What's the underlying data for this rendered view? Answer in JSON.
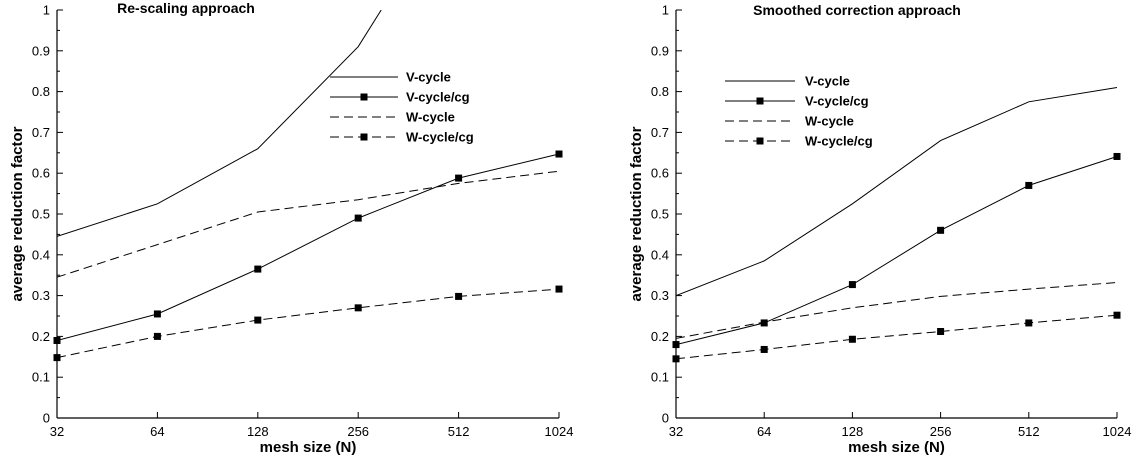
{
  "chart_data": [
    {
      "type": "line",
      "title": "Re-scaling approach",
      "xlabel": "mesh size (N)",
      "ylabel": "average reduction factor",
      "x_scale": "log2",
      "x": [
        32,
        64,
        128,
        256,
        512,
        1024
      ],
      "x_tick_labels": [
        "32",
        "64",
        "128",
        "256",
        "512",
        "1024"
      ],
      "ylim": [
        0,
        1
      ],
      "y_ticks": [
        0,
        0.1,
        0.2,
        0.3,
        0.4,
        0.5,
        0.6,
        0.7,
        0.8,
        0.9,
        1
      ],
      "y_tick_labels": [
        "0",
        "0.1",
        "0.2",
        "0.3",
        "0.4",
        "0.5",
        "0.6",
        "0.7",
        "0.8",
        "0.9",
        "1"
      ],
      "legend_position": "top-right",
      "series": [
        {
          "name": "V-cycle",
          "style": "solid",
          "marker": "none",
          "x": [
            32,
            64,
            128,
            256,
            300
          ],
          "values": [
            0.445,
            0.525,
            0.66,
            0.91,
            1.0
          ]
        },
        {
          "name": "V-cycle/cg",
          "style": "solid",
          "marker": "square",
          "x": [
            32,
            64,
            128,
            256,
            512,
            1024
          ],
          "values": [
            0.19,
            0.255,
            0.365,
            0.49,
            0.588,
            0.647
          ]
        },
        {
          "name": "W-cycle",
          "style": "dashed",
          "marker": "none",
          "x": [
            32,
            64,
            128,
            256,
            512,
            1024
          ],
          "values": [
            0.345,
            0.425,
            0.505,
            0.535,
            0.575,
            0.605
          ]
        },
        {
          "name": "W-cycle/cg",
          "style": "dashed",
          "marker": "square",
          "x": [
            32,
            64,
            128,
            256,
            512,
            1024
          ],
          "values": [
            0.148,
            0.2,
            0.24,
            0.27,
            0.298,
            0.316
          ]
        }
      ]
    },
    {
      "type": "line",
      "title": "Smoothed correction approach",
      "xlabel": "mesh size (N)",
      "ylabel": "average reduction factor",
      "x_scale": "log2",
      "x": [
        32,
        64,
        128,
        256,
        512,
        1024
      ],
      "x_tick_labels": [
        "32",
        "64",
        "128",
        "256",
        "512",
        "1024"
      ],
      "ylim": [
        0,
        1
      ],
      "y_ticks": [
        0,
        0.1,
        0.2,
        0.3,
        0.4,
        0.5,
        0.6,
        0.7,
        0.8,
        0.9,
        1
      ],
      "y_tick_labels": [
        "0",
        "0.1",
        "0.2",
        "0.3",
        "0.4",
        "0.5",
        "0.6",
        "0.7",
        "0.8",
        "0.9",
        "1"
      ],
      "legend_position": "top-left",
      "series": [
        {
          "name": "V-cycle",
          "style": "solid",
          "marker": "none",
          "x": [
            32,
            64,
            128,
            256,
            512,
            1024
          ],
          "values": [
            0.3,
            0.385,
            0.525,
            0.68,
            0.775,
            0.81
          ]
        },
        {
          "name": "V-cycle/cg",
          "style": "solid",
          "marker": "square",
          "x": [
            32,
            64,
            128,
            256,
            512,
            1024
          ],
          "values": [
            0.18,
            0.233,
            0.327,
            0.46,
            0.57,
            0.641
          ]
        },
        {
          "name": "W-cycle",
          "style": "dashed",
          "marker": "none",
          "x": [
            32,
            64,
            128,
            256,
            512,
            1024
          ],
          "values": [
            0.195,
            0.235,
            0.27,
            0.298,
            0.316,
            0.332
          ]
        },
        {
          "name": "W-cycle/cg",
          "style": "dashed",
          "marker": "square",
          "x": [
            32,
            64,
            128,
            256,
            512,
            1024
          ],
          "values": [
            0.145,
            0.168,
            0.193,
            0.212,
            0.233,
            0.252
          ]
        }
      ]
    }
  ]
}
